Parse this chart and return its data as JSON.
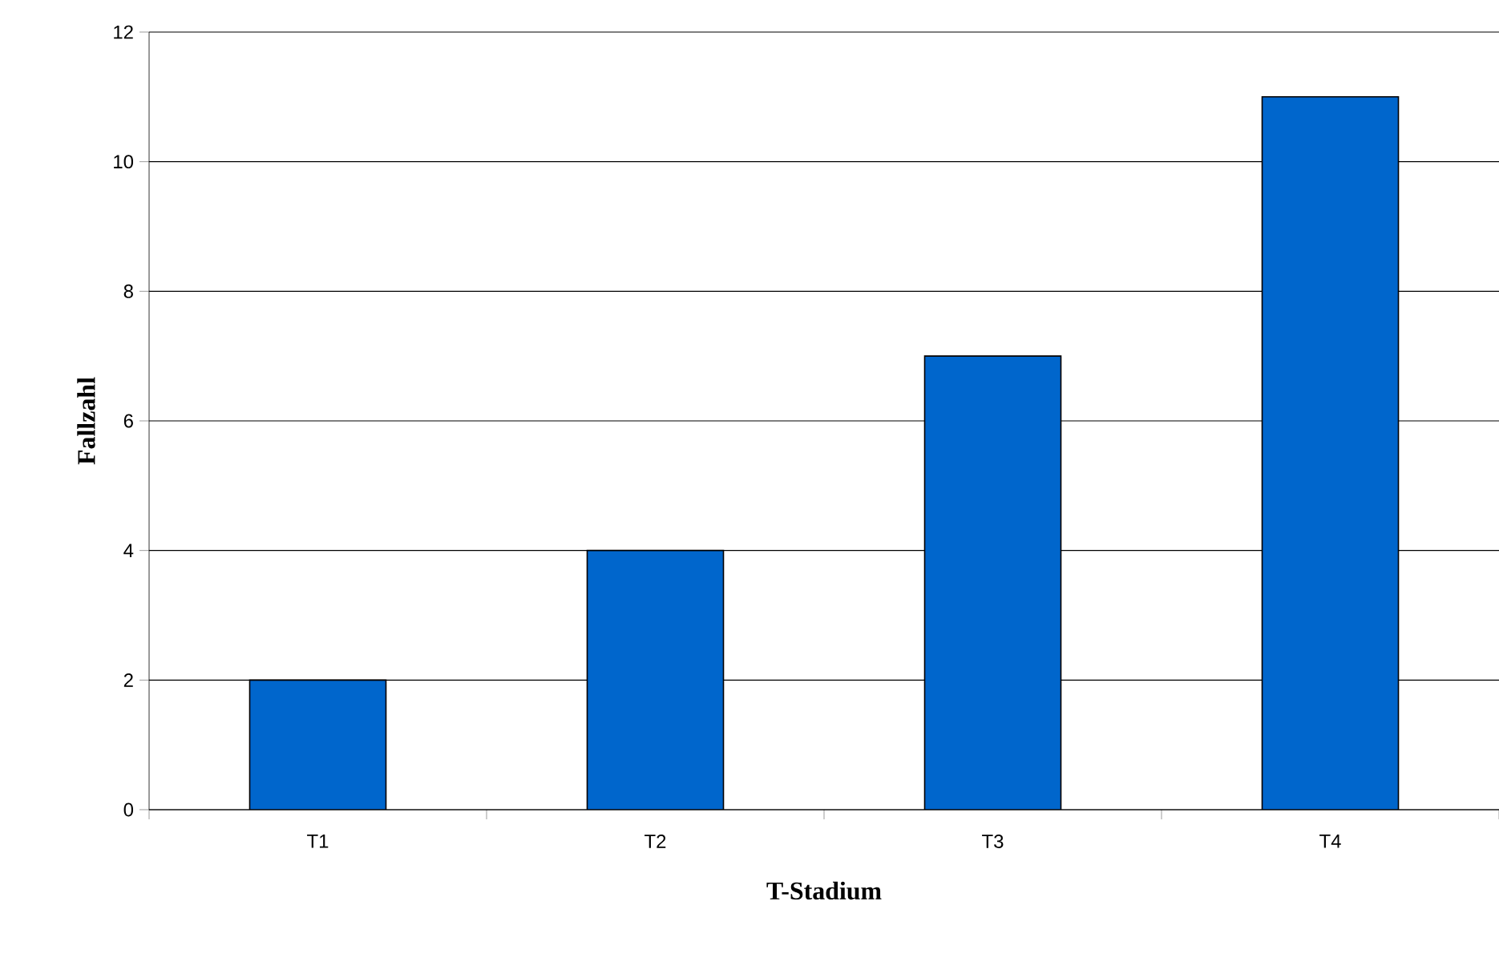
{
  "chart_data": {
    "type": "bar",
    "xlabel": "T-Stadium",
    "ylabel": "Fallzahl",
    "categories": [
      "T1",
      "T2",
      "T3",
      "T4"
    ],
    "values": [
      2,
      4,
      7,
      11
    ],
    "color": "#0066cc",
    "ylim": [
      0,
      12
    ],
    "yticks": [
      0,
      2,
      4,
      6,
      8,
      10,
      12
    ],
    "grid": "y"
  }
}
